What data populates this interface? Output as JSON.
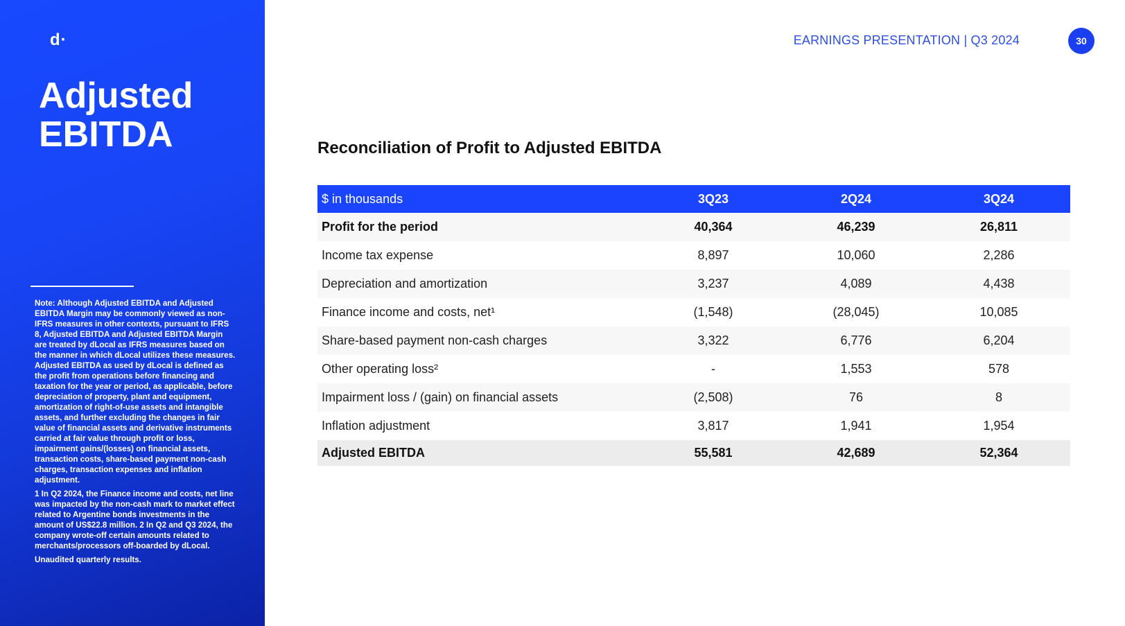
{
  "sidebar": {
    "logo": "d·",
    "title_line1": "Adjusted",
    "title_line2": "EBITDA",
    "notes": [
      "Note: Although Adjusted EBITDA and Adjusted EBITDA Margin may be commonly viewed as non-IFRS measures in other contexts, pursuant to IFRS 8, Adjusted EBITDA and Adjusted EBITDA Margin are treated by dLocal as IFRS measures based on the manner in which dLocal utilizes these measures. Adjusted EBITDA as used by dLocal is defined as the profit from operations before financing and taxation for the year or period, as applicable, before depreciation of property, plant and equipment, amortization of right-of-use assets and intangible assets, and further excluding the changes in fair value of financial assets and derivative instruments carried at fair value through profit or loss, impairment gains/(losses) on financial assets, transaction costs, share-based payment non-cash charges, transaction expenses and inflation adjustment.",
      "1 In Q2 2024, the Finance income and costs, net line was impacted by the non-cash mark to market effect related to Argentine bonds investments in the amount of US$22.8 million. 2 In Q2 and Q3 2024, the company wrote-off certain amounts related to merchants/processors off-boarded by dLocal.",
      "Unaudited quarterly results."
    ]
  },
  "header": {
    "label": "EARNINGS PRESENTATION | Q3 2024",
    "page_number": "30"
  },
  "main": {
    "title": "Reconciliation of Profit to Adjusted EBITDA",
    "table": {
      "headers": [
        "$ in thousands",
        "3Q23",
        "2Q24",
        "3Q24"
      ],
      "rows": [
        {
          "label": "Profit for the period",
          "values": [
            "40,364",
            "46,239",
            "26,811"
          ]
        },
        {
          "label": "Income tax expense",
          "values": [
            "8,897",
            "10,060",
            "2,286"
          ]
        },
        {
          "label": "Depreciation and amortization",
          "values": [
            "3,237",
            "4,089",
            "4,438"
          ]
        },
        {
          "label": "Finance income and costs, net¹",
          "values": [
            "(1,548)",
            "(28,045)",
            "10,085"
          ]
        },
        {
          "label": "Share-based payment non-cash charges",
          "values": [
            "3,322",
            "6,776",
            "6,204"
          ]
        },
        {
          "label": "Other operating loss²",
          "values": [
            "-",
            "1,553",
            "578"
          ]
        },
        {
          "label": "Impairment loss / (gain) on financial assets",
          "values": [
            "(2,508)",
            "76",
            "8"
          ]
        },
        {
          "label": "Inflation adjustment",
          "values": [
            "3,817",
            "1,941",
            "1,954"
          ]
        },
        {
          "label": "Adjusted EBITDA",
          "values": [
            "55,581",
            "42,689",
            "52,364"
          ]
        }
      ]
    }
  }
}
